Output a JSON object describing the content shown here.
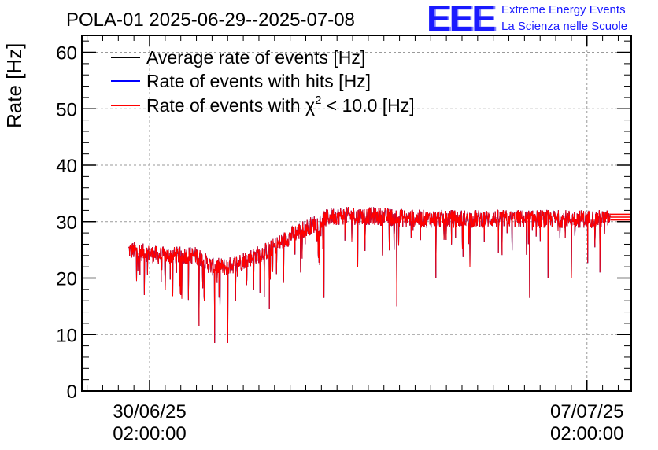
{
  "chart_data": {
    "type": "line",
    "title": "POLA-01 2025-06-29--2025-07-08",
    "ylabel": "Rate [Hz]",
    "xlabel": "",
    "ylim": [
      0,
      63
    ],
    "xlim_hours": [
      0,
      211
    ],
    "y_ticks": [
      0,
      10,
      20,
      30,
      40,
      50,
      60
    ],
    "grid": true,
    "legend_position": "top-left",
    "x_ticks": [
      {
        "hours": 26,
        "line1": "30/06/25",
        "line2": "02:00:00"
      },
      {
        "hours": 194,
        "line1": "07/07/25",
        "line2": "02:00:00"
      }
    ],
    "series": [
      {
        "name": "Average rate of events [Hz]",
        "color": "#000000"
      },
      {
        "name": "Rate of events with hits [Hz]",
        "color": "#0000ff"
      },
      {
        "name": "Rate of events with χ² < 10.0 [Hz]",
        "name_prefix": "Rate of events with χ",
        "name_sup": "2",
        "name_suffix": " < 10.0 [Hz]",
        "color": "#ff0000"
      }
    ],
    "trend": {
      "hours": [
        18,
        30,
        44,
        50,
        56,
        64,
        72,
        82,
        96,
        110,
        130,
        160,
        190,
        203
      ],
      "values": [
        25,
        24,
        24,
        22,
        22,
        23.5,
        25,
        28,
        31,
        31,
        30.5,
        30.5,
        30.5,
        30.5
      ]
    },
    "dips": [
      {
        "hours": 21,
        "value": 19.5
      },
      {
        "hours": 24,
        "value": 17
      },
      {
        "hours": 32,
        "value": 18
      },
      {
        "hours": 38,
        "value": 17
      },
      {
        "hours": 45,
        "value": 11.5
      },
      {
        "hours": 47,
        "value": 16
      },
      {
        "hours": 51,
        "value": 8.5
      },
      {
        "hours": 53,
        "value": 15
      },
      {
        "hours": 56,
        "value": 8.5
      },
      {
        "hours": 59,
        "value": 16
      },
      {
        "hours": 66,
        "value": 18
      },
      {
        "hours": 72,
        "value": 14.5
      },
      {
        "hours": 84,
        "value": 21
      },
      {
        "hours": 93,
        "value": 16.5
      },
      {
        "hours": 106,
        "value": 22
      },
      {
        "hours": 121,
        "value": 15
      },
      {
        "hours": 136,
        "value": 20
      },
      {
        "hours": 149,
        "value": 22
      },
      {
        "hours": 172,
        "value": 16.5
      },
      {
        "hours": 179,
        "value": 20
      },
      {
        "hours": 188,
        "value": 20
      },
      {
        "hours": 199,
        "value": 21
      }
    ],
    "extension": {
      "start_hours": 203,
      "end_hours": 211,
      "values": [
        30.3,
        30.8,
        31.3
      ]
    }
  },
  "logo": {
    "letters": "EEE",
    "line1": "Extreme Energy Events",
    "line2": "La Scienza nelle Scuole"
  }
}
